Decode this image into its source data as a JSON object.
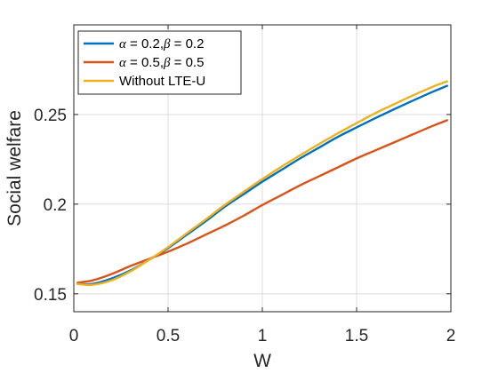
{
  "chart_data": {
    "type": "line",
    "title": "",
    "xlabel": "W",
    "ylabel": "Social welfare",
    "xlim": [
      0,
      2
    ],
    "ylim": [
      0.14,
      0.3
    ],
    "xticks": [
      0,
      0.5,
      1,
      1.5,
      2
    ],
    "xtick_labels": [
      "0",
      "0.5",
      "1",
      "1.5",
      "2"
    ],
    "yticks": [
      0.15,
      0.2,
      0.25
    ],
    "ytick_labels": [
      "0.15",
      "0.2",
      "0.25"
    ],
    "grid": true,
    "legend_position": "top-left",
    "series": [
      {
        "name": "α = 0.2,β = 0.2",
        "legend": {
          "sym1": "α",
          "mid": " = 0.2,",
          "sym2": "β",
          "end": " = 0.2"
        },
        "color": "#0072BD",
        "x": [
          0.02,
          0.1,
          0.2,
          0.3,
          0.4,
          0.5,
          0.6,
          0.7,
          0.8,
          0.9,
          1.0,
          1.1,
          1.2,
          1.3,
          1.4,
          1.5,
          1.6,
          1.7,
          1.8,
          1.9,
          1.98
        ],
        "y": [
          0.1555,
          0.1555,
          0.1585,
          0.163,
          0.169,
          0.1755,
          0.183,
          0.1905,
          0.1985,
          0.2055,
          0.2125,
          0.219,
          0.2255,
          0.2315,
          0.2375,
          0.2428,
          0.248,
          0.253,
          0.2578,
          0.2625,
          0.266
        ]
      },
      {
        "name": "α = 0.5,β = 0.5",
        "legend": {
          "sym1": "α",
          "mid": " = 0.5,",
          "sym2": "β",
          "end": " = 0.5"
        },
        "color": "#D95319",
        "x": [
          0.02,
          0.1,
          0.2,
          0.3,
          0.4,
          0.5,
          0.6,
          0.7,
          0.8,
          0.9,
          1.0,
          1.1,
          1.2,
          1.3,
          1.4,
          1.5,
          1.6,
          1.7,
          1.8,
          1.9,
          1.98
        ],
        "y": [
          0.1562,
          0.1575,
          0.161,
          0.1655,
          0.1695,
          0.1735,
          0.178,
          0.183,
          0.188,
          0.1935,
          0.1995,
          0.205,
          0.2105,
          0.2155,
          0.2205,
          0.2255,
          0.23,
          0.2345,
          0.239,
          0.2435,
          0.2468
        ]
      },
      {
        "name": "Without LTE-U",
        "legend": {
          "text": "Without LTE-U"
        },
        "color": "#EDB120",
        "x": [
          0.02,
          0.1,
          0.2,
          0.3,
          0.4,
          0.5,
          0.6,
          0.7,
          0.8,
          0.9,
          1.0,
          1.1,
          1.2,
          1.3,
          1.4,
          1.5,
          1.6,
          1.7,
          1.8,
          1.9,
          1.98
        ],
        "y": [
          0.1555,
          0.155,
          0.1575,
          0.1625,
          0.169,
          0.176,
          0.1838,
          0.1915,
          0.1995,
          0.2068,
          0.214,
          0.2208,
          0.2272,
          0.2335,
          0.2395,
          0.2452,
          0.2508,
          0.2558,
          0.2607,
          0.2653,
          0.2685
        ]
      }
    ]
  }
}
